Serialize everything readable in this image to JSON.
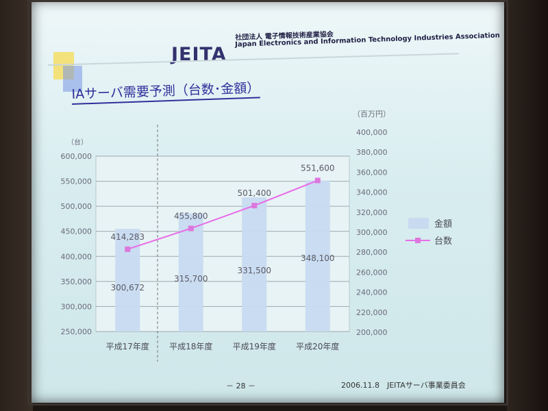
{
  "header": {
    "logo": "JEITA",
    "org_line1": "社団法人 電子情報技術産業協会",
    "org_line2": "Japan Electronics and Information Technology Industries Association"
  },
  "slide": {
    "title": "IAサーバ需要予測（台数･金額）",
    "page": "－ 28 －",
    "footer": "2006.11.8　JEITAサーバ事業委員会"
  },
  "colors": {
    "bar": "#c8daf0",
    "line": "#e86be8",
    "marker": "#dd77dd",
    "axis_text": "#6a6a7a"
  },
  "chart_data": {
    "type": "bar",
    "categories": [
      "平成17年度",
      "平成18年度",
      "平成19年度",
      "平成20年度"
    ],
    "left_unit": "（台）",
    "right_unit": "（百万円）",
    "left_ticks": [
      "600,000",
      "550,000",
      "500,000",
      "450,000",
      "400,000",
      "350,000",
      "300,000",
      "250,000"
    ],
    "right_ticks": [
      "400,000",
      "380,000",
      "360,000",
      "340,000",
      "320,000",
      "300,000",
      "280,000",
      "260,000",
      "240,000",
      "220,000",
      "200,000"
    ],
    "left_range": [
      250000,
      600000
    ],
    "right_range": [
      200000,
      380000
    ],
    "series": [
      {
        "name": "金額",
        "kind": "bar",
        "axis": "right",
        "values": [
          300672,
          315700,
          331500,
          348100
        ],
        "labels": [
          "300,672",
          "315,700",
          "331,500",
          "348,100"
        ]
      },
      {
        "name": "台数",
        "kind": "line",
        "axis": "left",
        "values": [
          414283,
          455800,
          501400,
          551600
        ],
        "labels": [
          "414,283",
          "455,800",
          "501,400",
          "551,600"
        ]
      }
    ],
    "grid": true,
    "legend": "right"
  }
}
